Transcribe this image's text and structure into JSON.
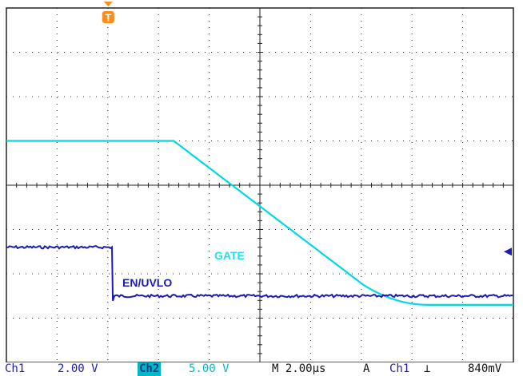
{
  "screen": {
    "time_divisions": 10,
    "voltage_divisions": 8,
    "background": "#ffffff",
    "grid_color": "#222222"
  },
  "channels": [
    {
      "id": "Ch1",
      "label": "Ch1",
      "scale": "2.00 V",
      "color": "#1c1cb4",
      "signal_label": "EN/UVLO"
    },
    {
      "id": "Ch2",
      "label": "Ch2",
      "scale": "5.00 V",
      "color": "#00d8e8",
      "signal_label": "GATE"
    }
  ],
  "status": {
    "ch1_label": "Ch1",
    "ch1_scale": "2.00 V",
    "ch2_label": "Ch2",
    "ch2_scale": "5.00 V",
    "timebase": "M 2.00µs",
    "trigger_mode": "A",
    "trigger_source": "Ch1",
    "trigger_slope_icon": "falling-edge",
    "trigger_level": "840mV"
  },
  "markers": {
    "trigger_marker": "T",
    "trigger_color": "#ff8c1a",
    "level_arrow_color": "#1c1cb4"
  },
  "waveforms": {
    "gate": {
      "name": "GATE",
      "high_level_div": 5.0,
      "fall_start_time_div": 3.3,
      "fall_end_time_div": 8.3,
      "low_level_div": 1.3
    },
    "en_uvlo": {
      "name": "EN/UVLO",
      "high_level_div": 2.6,
      "fall_time_div": 2.1,
      "low_level_div": 1.5
    }
  }
}
